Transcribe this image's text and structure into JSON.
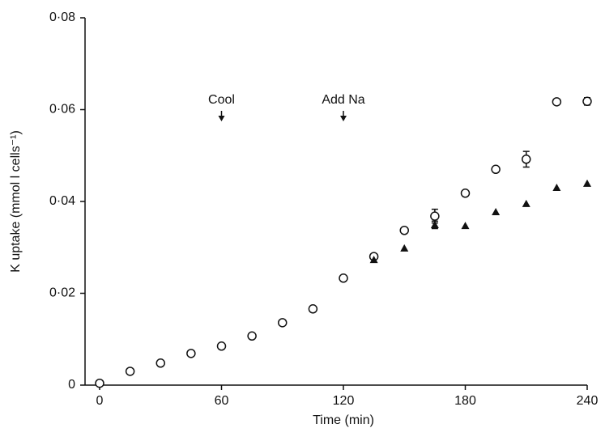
{
  "chart_data": {
    "type": "scatter",
    "x_label": "Time (min)",
    "y_label": "K uptake (mmol l cells⁻¹)",
    "xlim": [
      0,
      240
    ],
    "xticks": [
      0,
      60,
      120,
      180,
      240
    ],
    "ylim": [
      0,
      0.08
    ],
    "yticks": [
      0,
      {
        "value": 0.02,
        "label": "0·02"
      },
      {
        "value": 0.04,
        "label": "0·04"
      },
      {
        "value": 0.06,
        "label": "0·06"
      },
      {
        "value": 0.08,
        "label": "0·08"
      }
    ],
    "annotations": [
      {
        "text": "Cool",
        "x": 60
      },
      {
        "text": "Add Na",
        "x": 120
      }
    ],
    "series": [
      {
        "marker": "circle",
        "color": "#111111",
        "x": [
          0,
          15,
          30,
          45,
          60,
          75,
          90,
          105,
          120,
          135,
          150,
          165,
          180,
          195,
          210,
          225,
          240
        ],
        "values": [
          0.0004,
          0.003,
          0.0048,
          0.0069,
          0.0085,
          0.0107,
          0.0136,
          0.0166,
          0.0233,
          0.028,
          0.0337,
          0.0368,
          0.0418,
          0.047,
          0.0492,
          0.0617,
          0.0618
        ],
        "errors": [
          null,
          null,
          null,
          null,
          null,
          null,
          null,
          null,
          null,
          null,
          null,
          0.0015,
          null,
          null,
          0.0017,
          null,
          0.0008
        ]
      },
      {
        "marker": "triangle",
        "color": "#111111",
        "x": [
          135,
          150,
          165,
          180,
          195,
          210,
          225,
          240
        ],
        "values": [
          0.0273,
          0.0298,
          0.0349,
          0.0347,
          0.0377,
          0.0395,
          0.043,
          0.0439
        ],
        "errors": [
          null,
          null,
          0.0008,
          null,
          null,
          null,
          null,
          null
        ]
      }
    ]
  }
}
